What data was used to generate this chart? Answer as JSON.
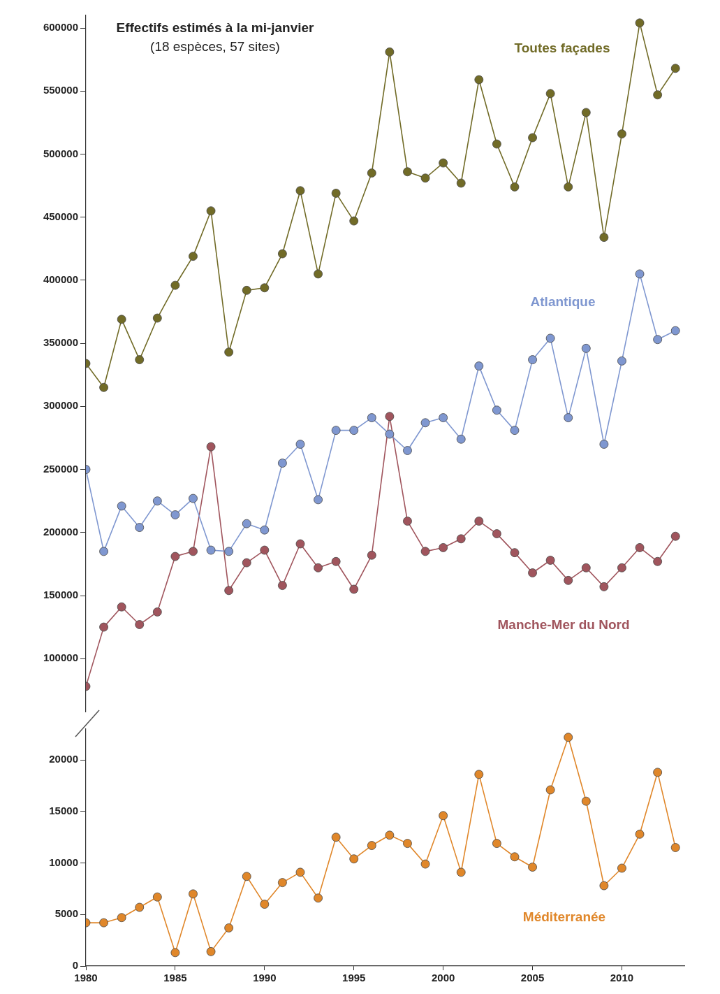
{
  "chart_data": [
    {
      "type": "line",
      "title": "Effectifs estimés à la mi-janvier",
      "subtitle": "(18 espèces, 57 sites)",
      "x": [
        1980,
        1981,
        1982,
        1983,
        1984,
        1985,
        1986,
        1987,
        1988,
        1989,
        1990,
        1991,
        1992,
        1993,
        1994,
        1995,
        1996,
        1997,
        1998,
        1999,
        2000,
        2001,
        2002,
        2003,
        2004,
        2005,
        2006,
        2007,
        2008,
        2009,
        2010,
        2011,
        2012,
        2013
      ],
      "ylim": [
        58000,
        610000
      ],
      "yticks": [
        100000,
        150000,
        200000,
        250000,
        300000,
        350000,
        400000,
        450000,
        500000,
        550000,
        600000
      ],
      "tick_labels": "y",
      "marker": "circle",
      "series": [
        {
          "name": "Toutes façades",
          "color": "#716b27",
          "values": [
            334000,
            315000,
            369000,
            337000,
            370000,
            396000,
            419000,
            455000,
            343000,
            392000,
            394000,
            421000,
            471000,
            405000,
            469000,
            447000,
            485000,
            581000,
            486000,
            481000,
            493000,
            477000,
            559000,
            508000,
            474000,
            513000,
            548000,
            474000,
            533000,
            434000,
            516000,
            604000,
            547000,
            568000
          ]
        },
        {
          "name": "Atlantique",
          "color": "#7f97d0",
          "values": [
            250000,
            185000,
            221000,
            204000,
            225000,
            214000,
            227000,
            186000,
            185000,
            207000,
            202000,
            255000,
            270000,
            226000,
            281000,
            281000,
            291000,
            278000,
            265000,
            287000,
            291000,
            274000,
            332000,
            297000,
            281000,
            337000,
            354000,
            291000,
            346000,
            270000,
            336000,
            405000,
            353000,
            360000
          ]
        },
        {
          "name": "Manche-Mer du Nord",
          "color": "#a0555d",
          "values": [
            78000,
            125000,
            141000,
            127000,
            137000,
            181000,
            185000,
            268000,
            154000,
            176000,
            186000,
            158000,
            191000,
            172000,
            177000,
            155000,
            182000,
            292000,
            209000,
            185000,
            188000,
            195000,
            209000,
            199000,
            184000,
            168000,
            178000,
            162000,
            172000,
            157000,
            172000,
            188000,
            177000,
            197000
          ]
        }
      ]
    },
    {
      "type": "line",
      "x": [
        1980,
        1981,
        1982,
        1983,
        1984,
        1985,
        1986,
        1987,
        1988,
        1989,
        1990,
        1991,
        1992,
        1993,
        1994,
        1995,
        1996,
        1997,
        1998,
        1999,
        2000,
        2001,
        2002,
        2003,
        2004,
        2005,
        2006,
        2007,
        2008,
        2009,
        2010,
        2011,
        2012,
        2013
      ],
      "xlim": [
        1980,
        2013.5
      ],
      "xticks": [
        1980,
        1985,
        1990,
        1995,
        2000,
        2005,
        2010
      ],
      "ylim": [
        0,
        23000
      ],
      "yticks": [
        0,
        5000,
        10000,
        15000,
        20000
      ],
      "marker": "circle",
      "series": [
        {
          "name": "Méditerranée",
          "color": "#e0872a",
          "values": [
            4200,
            4200,
            4700,
            5700,
            6700,
            1300,
            7000,
            1400,
            3700,
            8700,
            6000,
            8100,
            9100,
            6600,
            12500,
            10400,
            11700,
            12700,
            11900,
            9900,
            14600,
            9100,
            18600,
            11900,
            10600,
            9600,
            17100,
            22200,
            16000,
            7800,
            9500,
            12800,
            18800,
            11500
          ]
        }
      ]
    }
  ]
}
